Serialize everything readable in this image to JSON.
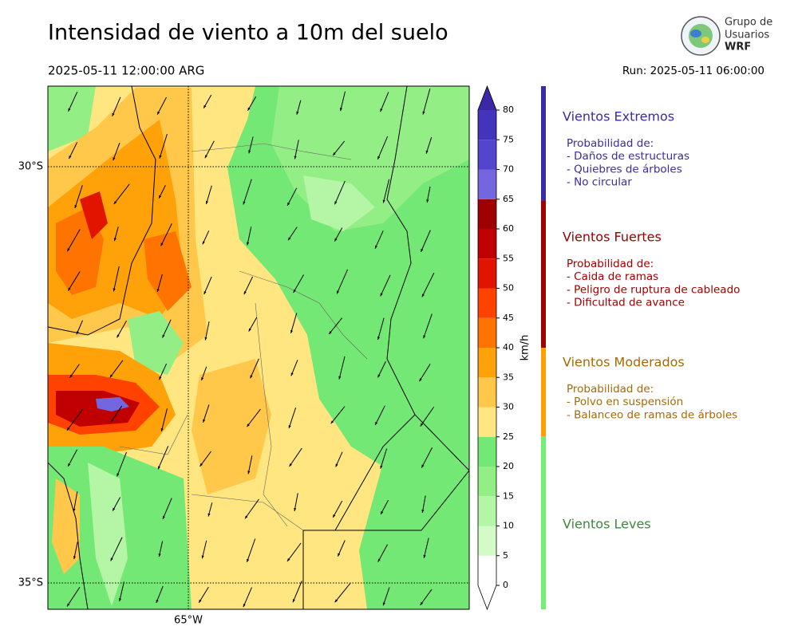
{
  "title": "Intensidad de viento a 10m del suelo",
  "valid_time": "2025-05-11 12:00:00 ARG",
  "run": "Run: 2025-05-11 06:00:00",
  "logo": {
    "line1": "Grupo de",
    "line2": "Usuarios",
    "line3": "WRF"
  },
  "map": {
    "lat_labels": [
      "30°S",
      "35°S"
    ],
    "lon_labels": [
      "65°W"
    ]
  },
  "colorbar": {
    "label": "km/h",
    "ticks": [
      0,
      5,
      10,
      15,
      20,
      25,
      30,
      35,
      40,
      45,
      50,
      55,
      60,
      65,
      70,
      75,
      80
    ],
    "colors": [
      "#ffffff",
      "#d2fbc8",
      "#b4f5a6",
      "#94ee86",
      "#74e874",
      "#ffe680",
      "#ffc84a",
      "#ffa20a",
      "#ff7400",
      "#ff4200",
      "#e21400",
      "#c00000",
      "#9e0000",
      "#7466dc",
      "#5446cc",
      "#4434bc"
    ],
    "over_color": "#3a28a8",
    "under_color": "#ffffff"
  },
  "categories": [
    {
      "name": "Vientos Extremos",
      "color": "#3a2ba6",
      "bar_color": "#3a2ba6",
      "heading": "Probabilidad de:",
      "items": [
        "- Daños de estructuras",
        "- Quiebres de árboles",
        "- No circular"
      ]
    },
    {
      "name": "Vientos Fuertes",
      "color": "#a00000",
      "bar_color": "#a00000",
      "heading": "Probabilidad de:",
      "items": [
        "- Caida de ramas",
        "- Peligro de ruptura de cableado",
        "- Dificultad de avance"
      ]
    },
    {
      "name": "Vientos Moderados",
      "color": "#a86a00",
      "bar_color": "#ffa000",
      "heading": "Probabilidad de:",
      "items": [
        "- Polvo en suspensión",
        "- Balanceo de ramas de árboles"
      ]
    },
    {
      "name": "Vientos Leves",
      "color": "#3a8a3a",
      "bar_color": "#74ee74"
    }
  ]
}
